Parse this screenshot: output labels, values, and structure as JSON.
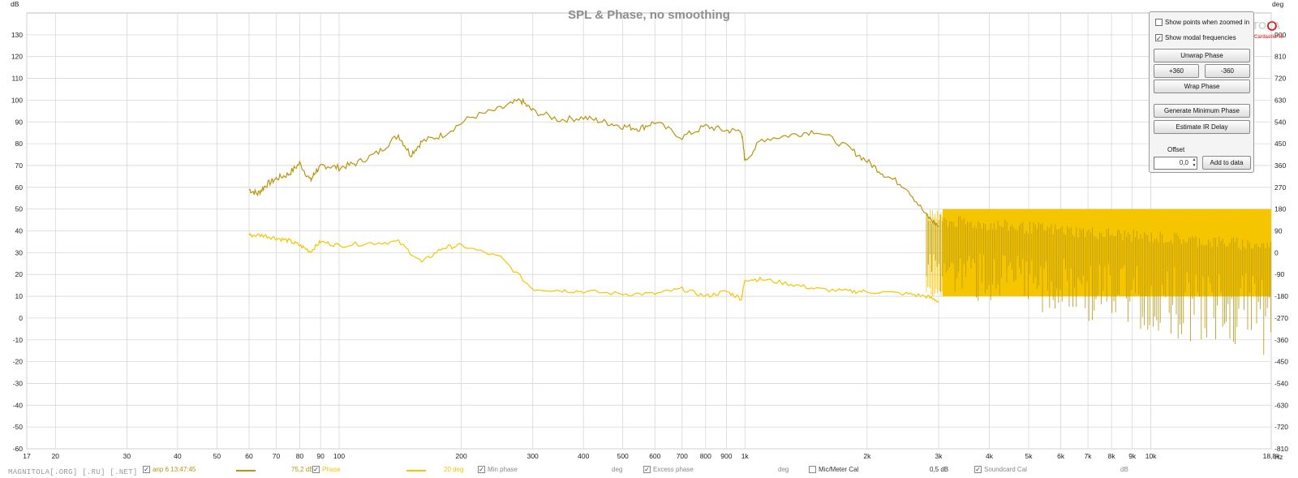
{
  "colors": {
    "spl": "#b8960c",
    "phase": "#f5c500",
    "grid": "#d7d7d7",
    "plot_bg": "#ffffff"
  },
  "chart_data": {
    "type": "line",
    "title": "SPL & Phase, no smoothing",
    "left_axis_unit": "dB",
    "right_axis_unit": "deg",
    "x_unit_label": "Hz",
    "x_scale": "log",
    "xlim": [
      17,
      19800
    ],
    "ylim": [
      -60,
      140
    ],
    "ylim_right": [
      -810,
      990
    ],
    "grid": true,
    "y_ticks": [
      130,
      120,
      110,
      100,
      90,
      80,
      70,
      60,
      50,
      40,
      30,
      20,
      10,
      0,
      -10,
      -20,
      -30,
      -40,
      -50,
      -60
    ],
    "y_right_ticks": [
      900,
      810,
      720,
      630,
      540,
      450,
      360,
      270,
      180,
      90,
      0,
      -90,
      -180,
      -270,
      -360,
      -450,
      -540,
      -630,
      -720,
      -810
    ],
    "x_ticks": [
      {
        "v": 17,
        "t": "17"
      },
      {
        "v": 20,
        "t": "20"
      },
      {
        "v": 30,
        "t": "30"
      },
      {
        "v": 40,
        "t": "40"
      },
      {
        "v": 50,
        "t": "50"
      },
      {
        "v": 60,
        "t": "60"
      },
      {
        "v": 70,
        "t": "70"
      },
      {
        "v": 80,
        "t": "80"
      },
      {
        "v": 90,
        "t": "90"
      },
      {
        "v": 100,
        "t": "100"
      },
      {
        "v": 200,
        "t": "200"
      },
      {
        "v": 300,
        "t": "300"
      },
      {
        "v": 400,
        "t": "400"
      },
      {
        "v": 500,
        "t": "500"
      },
      {
        "v": 600,
        "t": "600"
      },
      {
        "v": 700,
        "t": "700"
      },
      {
        "v": 800,
        "t": "800"
      },
      {
        "v": 900,
        "t": "900"
      },
      {
        "v": 1000,
        "t": "1k"
      },
      {
        "v": 2000,
        "t": "2k"
      },
      {
        "v": 3000,
        "t": "3k"
      },
      {
        "v": 4000,
        "t": "4k"
      },
      {
        "v": 5000,
        "t": "5k"
      },
      {
        "v": 6000,
        "t": "6k"
      },
      {
        "v": 7000,
        "t": "7k"
      },
      {
        "v": 8000,
        "t": "8k"
      },
      {
        "v": 9000,
        "t": "9k"
      },
      {
        "v": 10000,
        "t": "10k"
      },
      {
        "v": 19800,
        "t": "18,8k"
      }
    ],
    "series": [
      {
        "name": "anp 6 13:47:45",
        "axis": "left",
        "x": [
          60,
          63,
          66,
          70,
          75,
          80,
          85,
          88,
          92,
          100,
          110,
          125,
          140,
          150,
          160,
          180,
          210,
          250,
          280,
          300,
          350,
          400,
          450,
          500,
          550,
          600,
          700,
          800,
          900,
          980,
          1000,
          1100,
          1300,
          1500,
          1800,
          2000,
          2200,
          2500,
          2800,
          3000
        ],
        "y": [
          59,
          57,
          61,
          64,
          66,
          71,
          63,
          68,
          70,
          69,
          71,
          76,
          84,
          75,
          81,
          84,
          92,
          96,
          100,
          95,
          91,
          92,
          90,
          88,
          87,
          90,
          83,
          88,
          86,
          86,
          72,
          82,
          84,
          86,
          78,
          72,
          66,
          60,
          47,
          42
        ]
      },
      {
        "name": "Phase",
        "axis": "right",
        "x": [
          60,
          65,
          70,
          75,
          80,
          85,
          90,
          100,
          120,
          140,
          160,
          180,
          200,
          250,
          300,
          350,
          400,
          500,
          600,
          700,
          800,
          900,
          980,
          1000,
          1100,
          1300,
          1500,
          1800,
          2000,
          2500,
          2800,
          3000
        ],
        "y": [
          72,
          72,
          60,
          50,
          30,
          5,
          45,
          30,
          40,
          45,
          -40,
          20,
          30,
          -20,
          -150,
          -155,
          -160,
          -170,
          -170,
          -150,
          -180,
          -160,
          -190,
          -110,
          -110,
          -130,
          -150,
          -160,
          -160,
          -170,
          -180,
          -200
        ]
      }
    ],
    "hf_band": {
      "x_start": 2800,
      "x_end": 19800,
      "spl_low": -18,
      "spl_high": 50,
      "phase_low": -180,
      "phase_high": 180
    }
  },
  "panel": {
    "show_points": "Show points when zoomed in",
    "show_modal": "Show modal frequencies",
    "unwrap": "Unwrap Phase",
    "plus360": "+360",
    "minus360": "-360",
    "wrap": "Wrap Phase",
    "gen_min": "Generate Minimum Phase",
    "estimate_ir": "Estimate IR Delay",
    "offset_label": "Offset",
    "offset_value": "0,0",
    "add_to_data": "Add to data"
  },
  "legend": {
    "measurement": "anp 6 13:47:45",
    "spl_value": "75,2 dB",
    "phase_label": "Phase",
    "phase_value": "20 deg",
    "min_phase": "Min phase",
    "min_phase_unit": "deg",
    "excess_phase": "Excess phase",
    "excess_unit": "deg",
    "mic_cal": "Mic/Meter Cal",
    "mic_value": "0,5 dB",
    "soundcard_cal": "Soundcard Cal",
    "soundcard_unit": "dB"
  },
  "watermark": {
    "url": "MAGNITOLA[.ORG] [.RU] [.NET]",
    "logo": "MAGNITOLA",
    "logo_sub": "Cardastle Team"
  }
}
